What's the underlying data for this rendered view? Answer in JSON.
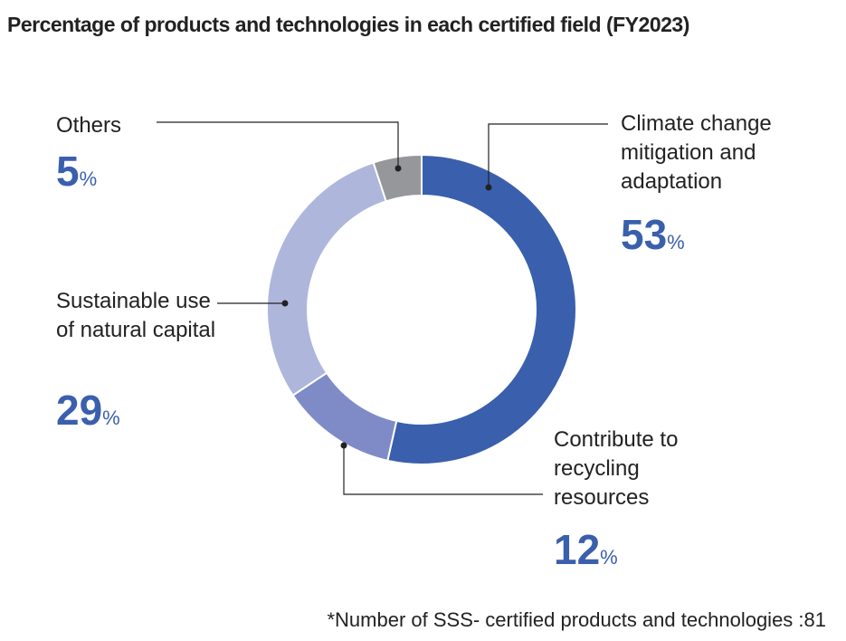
{
  "chart_data": {
    "type": "pie",
    "donut": true,
    "title": "Percentage of products and technologies in each certified field (FY2023)",
    "slices": [
      {
        "label": "Climate change mitigation and adaptation",
        "value": 53,
        "color": "#3a5fad"
      },
      {
        "label": "Contribute to recycling resources",
        "value": 12,
        "color": "#7e8bc7"
      },
      {
        "label": "Sustainable use of natural capital",
        "value": 29,
        "color": "#afb6dc"
      },
      {
        "label": "Others",
        "value": 5,
        "color": "#96979a"
      }
    ],
    "unit": "%",
    "note": "*Number of SSS- certified products and technologies :81"
  }
}
